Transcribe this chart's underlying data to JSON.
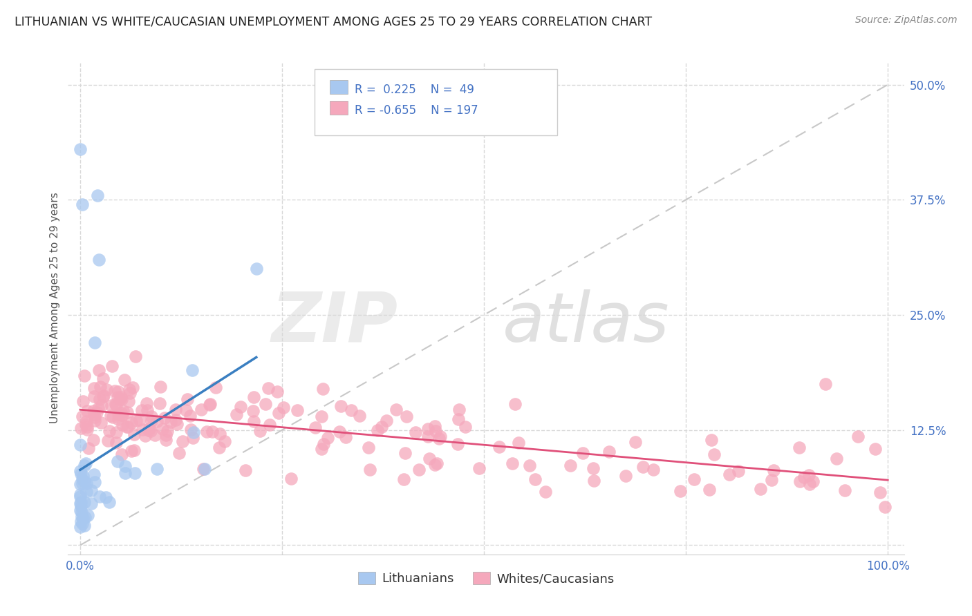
{
  "title": "LITHUANIAN VS WHITE/CAUCASIAN UNEMPLOYMENT AMONG AGES 25 TO 29 YEARS CORRELATION CHART",
  "source": "Source: ZipAtlas.com",
  "ylabel": "Unemployment Among Ages 25 to 29 years",
  "legend_r1": "R =  0.225",
  "legend_n1": "N =  49",
  "legend_r2": "R = -0.655",
  "legend_n2": "N = 197",
  "blue_color": "#a8c8f0",
  "pink_color": "#f5a8bc",
  "blue_line_color": "#3a7fc1",
  "pink_line_color": "#e0507a",
  "diag_line_color": "#c8c8c8",
  "grid_color": "#d8d8d8",
  "title_color": "#222222",
  "source_color": "#888888",
  "axis_label_color": "#555555",
  "tick_color": "#4472c4",
  "legend_text_color": "#4472c4",
  "legend_label_color": "#333333",
  "background_color": "#ffffff",
  "watermark_zip_color": "#e8e8e8",
  "watermark_atlas_color": "#d8d8d8"
}
